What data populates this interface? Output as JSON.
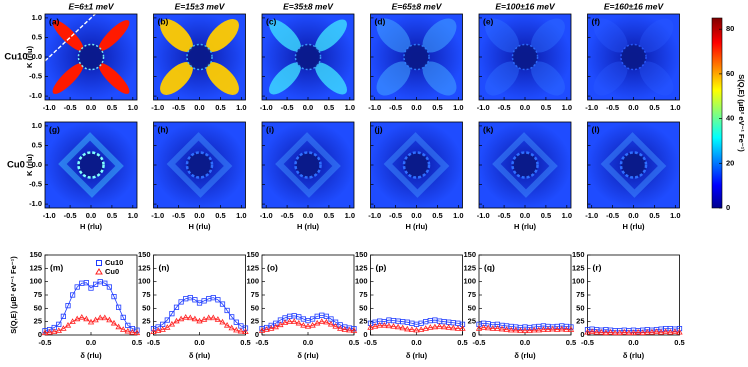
{
  "chart_data": [
    {
      "type": "heatmap",
      "titles": [
        "E=6±1 meV",
        "E=15±3 meV",
        "E=35±8 meV",
        "E=65±8 meV",
        "E=100±16 meV",
        "E=160±16 meV"
      ],
      "row_labels": [
        "Cu10",
        "Cu0"
      ],
      "panels": [
        [
          "(a)",
          "(b)",
          "(c)",
          "(d)",
          "(e)",
          "(f)"
        ],
        [
          "(g)",
          "(h)",
          "(i)",
          "(j)",
          "(k)",
          "(l)"
        ]
      ],
      "xlabel": "H (rlu)",
      "ylabel": "K (rlu)",
      "xlim": [
        -1.1,
        1.1
      ],
      "ylim": [
        -1.1,
        1.1
      ],
      "xticks": [
        {
          "value": -1,
          "label": "-1.0"
        },
        -0.5,
        {
          "value": 0,
          "label": "0.0"
        },
        0.5,
        {
          "value": 1,
          "label": "1.0"
        }
      ],
      "yticks": [
        {
          "value": -1,
          "label": "-1.0"
        },
        -0.5,
        {
          "value": 0,
          "label": "0.0"
        },
        0.5,
        {
          "value": 1,
          "label": "1.0"
        }
      ],
      "colormap": "jet",
      "colorbar": {
        "label": "S(Q,E) (μB² eV⁻¹ Fe⁻¹)",
        "lim": [
          0,
          85
        ],
        "ticks": [
          0,
          20,
          40,
          60,
          80
        ]
      }
    },
    {
      "type": "line",
      "panels": [
        "(m)",
        "(n)",
        "(o)",
        "(p)",
        "(q)",
        "(r)"
      ],
      "xlabel": "δ (rlu)",
      "ylabel": "S(Q,E) (μB² eV⁻¹ Fe⁻¹)",
      "x": [
        -0.5,
        -0.45,
        -0.4,
        -0.35,
        -0.3,
        -0.25,
        -0.2,
        -0.15,
        -0.1,
        -0.05,
        0,
        0.05,
        0.1,
        0.15,
        0.2,
        0.25,
        0.3,
        0.35,
        0.4,
        0.45,
        0.5
      ],
      "xlim": [
        -0.5,
        0.5
      ],
      "xticks": [
        -0.5,
        {
          "value": 0,
          "label": "0.0"
        },
        0.5
      ],
      "ylim": [
        0,
        150
      ],
      "yticks": [
        0,
        25,
        50,
        75,
        100,
        125,
        150
      ],
      "legend": "upper right",
      "series": [
        {
          "name": "Cu10",
          "color": "#1f3cff",
          "marker": "square",
          "values": [
            [
              8,
              10,
              14,
              20,
              35,
              55,
              75,
              90,
              97,
              98,
              88,
              95,
              100,
              97,
              90,
              72,
              52,
              33,
              18,
              12,
              9
            ],
            [
              12,
              15,
              20,
              28,
              40,
              52,
              62,
              68,
              70,
              66,
              60,
              64,
              68,
              70,
              66,
              58,
              46,
              34,
              24,
              17,
              13
            ],
            [
              12,
              14,
              18,
              22,
              28,
              32,
              35,
              36,
              34,
              30,
              27,
              30,
              35,
              37,
              35,
              30,
              24,
              19,
              15,
              13,
              12
            ],
            [
              22,
              24,
              26,
              25,
              28,
              27,
              26,
              25,
              24,
              22,
              20,
              22,
              25,
              27,
              28,
              26,
              25,
              24,
              23,
              22,
              20
            ],
            [
              20,
              22,
              21,
              19,
              20,
              18,
              17,
              16,
              15,
              14,
              15,
              14,
              15,
              16,
              17,
              16,
              15,
              16,
              17,
              16,
              15
            ],
            [
              10,
              11,
              10,
              9,
              10,
              9,
              8,
              8,
              9,
              8,
              9,
              8,
              9,
              10,
              9,
              10,
              11,
              12,
              12,
              11,
              12
            ]
          ]
        },
        {
          "name": "Cu0",
          "color": "#ff2020",
          "marker": "triangle",
          "values": [
            [
              4,
              5,
              6,
              8,
              12,
              18,
              25,
              30,
              33,
              30,
              24,
              28,
              32,
              32,
              28,
              22,
              15,
              10,
              7,
              5,
              4
            ],
            [
              6,
              8,
              10,
              14,
              20,
              26,
              30,
              33,
              32,
              30,
              26,
              29,
              32,
              32,
              29,
              24,
              18,
              13,
              9,
              7,
              6
            ],
            [
              8,
              10,
              12,
              15,
              19,
              23,
              25,
              25,
              22,
              18,
              16,
              18,
              22,
              25,
              24,
              20,
              16,
              12,
              10,
              9,
              8
            ],
            [
              14,
              16,
              18,
              18,
              17,
              16,
              15,
              13,
              11,
              10,
              9,
              10,
              12,
              14,
              15,
              16,
              15,
              14,
              13,
              12,
              12
            ],
            [
              12,
              14,
              13,
              12,
              12,
              11,
              10,
              9,
              9,
              8,
              8,
              8,
              9,
              9,
              10,
              10,
              11,
              10,
              11,
              10,
              10
            ],
            [
              5,
              6,
              5,
              5,
              4,
              5,
              4,
              4,
              5,
              4,
              4,
              5,
              4,
              5,
              5,
              6,
              5,
              6,
              5,
              6,
              5
            ]
          ]
        }
      ]
    }
  ]
}
